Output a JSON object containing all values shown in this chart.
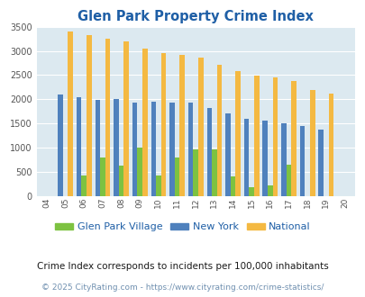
{
  "title": "Glen Park Property Crime Index",
  "years": [
    "04",
    "05",
    "06",
    "07",
    "08",
    "09",
    "10",
    "11",
    "12",
    "13",
    "14",
    "15",
    "16",
    "17",
    "18",
    "19",
    "20"
  ],
  "glen_park": [
    0,
    0,
    430,
    800,
    620,
    1010,
    430,
    800,
    960,
    970,
    400,
    185,
    215,
    640,
    0,
    0,
    0
  ],
  "new_york": [
    0,
    2090,
    2050,
    1990,
    2010,
    1940,
    1950,
    1940,
    1940,
    1820,
    1700,
    1600,
    1560,
    1510,
    1450,
    1380,
    0
  ],
  "national": [
    0,
    3410,
    3320,
    3250,
    3190,
    3040,
    2950,
    2910,
    2860,
    2720,
    2580,
    2490,
    2460,
    2370,
    2200,
    2110,
    0
  ],
  "glen_park_color": "#7dc241",
  "new_york_color": "#4f81bd",
  "national_color": "#f4b942",
  "bg_color": "#dce9f0",
  "title_color": "#1f5fa6",
  "ylabel_max": 3500,
  "ylabel_step": 500,
  "footnote1": "Crime Index corresponds to incidents per 100,000 inhabitants",
  "footnote2": "© 2025 CityRating.com - https://www.cityrating.com/crime-statistics/",
  "legend_labels": [
    "Glen Park Village",
    "New York",
    "National"
  ]
}
